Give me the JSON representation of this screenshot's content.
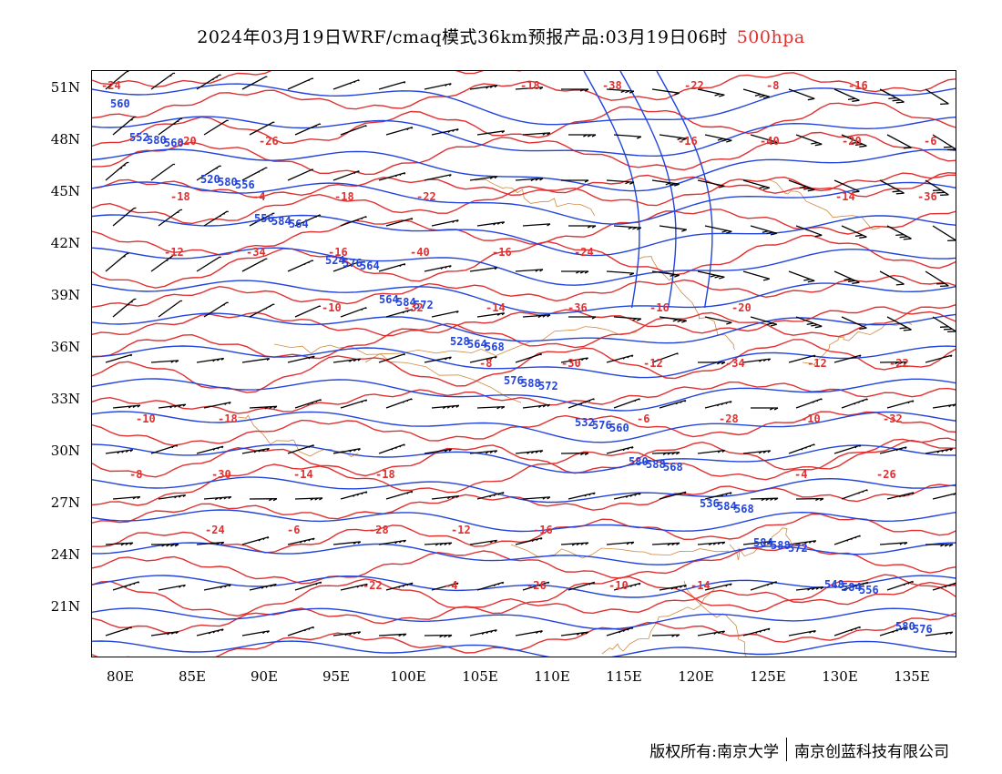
{
  "title": {
    "main": "2024年03月19日WRF/cmaq模式36km预报产品:03月19日06时",
    "level": "500hpa"
  },
  "footer": {
    "left": "版权所有:南京大学",
    "right": "南京创蓝科技有限公司"
  },
  "axes": {
    "lat_ticks": [
      "51N",
      "48N",
      "45N",
      "42N",
      "39N",
      "36N",
      "33N",
      "30N",
      "27N",
      "24N",
      "21N"
    ],
    "lon_ticks": [
      "80E",
      "85E",
      "90E",
      "95E",
      "100E",
      "105E",
      "110E",
      "115E",
      "120E",
      "125E",
      "130E",
      "135E"
    ]
  },
  "colors": {
    "height_contour": "#2244dd",
    "temperature_contour": "#e03030",
    "coastline_border": "#d08a40",
    "wind_barb": "#000000",
    "level_text": "#e03030"
  },
  "map": {
    "height_labels": [
      "560",
      "556",
      "564",
      "568",
      "560",
      "568",
      "556",
      "560",
      "564",
      "572",
      "572",
      "568",
      "572",
      "576",
      "580",
      "576",
      "564",
      "576",
      "584",
      "584",
      "580",
      "584",
      "584",
      "588",
      "588",
      "588",
      "580",
      "520",
      "524",
      "528",
      "532",
      "536",
      "548",
      "552",
      "556",
      "564",
      "576",
      "580",
      "584"
    ],
    "temperature_labels": [
      "-24",
      "-26",
      "-22",
      "-24",
      "-20",
      "-22",
      "-18",
      "-18",
      "-16",
      "-14",
      "-16",
      "-20",
      "-18",
      "-16",
      "-16",
      "-12",
      "-10",
      "-14",
      "-12",
      "-10",
      "-8",
      "-6",
      "-4",
      "-40",
      "-36",
      "-34",
      "-32",
      "-30",
      "-28",
      "-26",
      "-22",
      "-20",
      "-18",
      "-16",
      "-14",
      "-12",
      "-10",
      "-8",
      "-6",
      "-4",
      "-38",
      "-40",
      "-36",
      "-34",
      "-32",
      "-30",
      "-28",
      "-26",
      "-24",
      "-22",
      "-18",
      "-16",
      "-14",
      "-12",
      "-10",
      "-8",
      "-6",
      "-4"
    ]
  }
}
